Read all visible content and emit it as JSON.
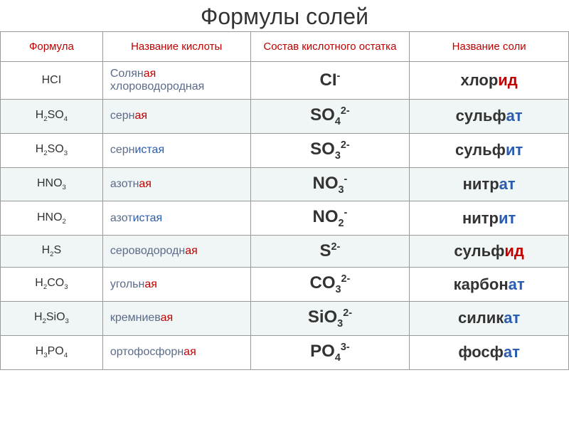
{
  "title": "Формулы солей",
  "headers": {
    "formula": "Формула",
    "acid_name": "Название кислоты",
    "residue": "Состав кислотного остатка",
    "salt_name": "Название соли"
  },
  "rows": [
    {
      "formula_parts": [
        {
          "t": "HCI"
        }
      ],
      "acid_lines": [
        {
          "stem": "Солян",
          "suffix": "ая",
          "suffix_color": "red"
        },
        {
          "stem": "хлороводородная",
          "suffix": "",
          "suffix_color": ""
        }
      ],
      "residue_parts": [
        {
          "t": "CI"
        },
        {
          "t": "-",
          "sup": true
        }
      ],
      "salt_stem": "хлор",
      "salt_suffix": "ид",
      "salt_suffix_color": "red"
    },
    {
      "formula_parts": [
        {
          "t": "H"
        },
        {
          "t": "2",
          "sub": true
        },
        {
          "t": "SO"
        },
        {
          "t": "4",
          "sub": true
        }
      ],
      "acid_lines": [
        {
          "stem": "серн",
          "suffix": "ая",
          "suffix_color": "red"
        }
      ],
      "residue_parts": [
        {
          "t": "SO"
        },
        {
          "t": "4",
          "sub": true
        },
        {
          "t": "2-",
          "sup": true
        }
      ],
      "salt_stem": "сульф",
      "salt_suffix": "ат",
      "salt_suffix_color": "blue"
    },
    {
      "formula_parts": [
        {
          "t": "H"
        },
        {
          "t": "2",
          "sub": true
        },
        {
          "t": "SO"
        },
        {
          "t": "3",
          "sub": true
        }
      ],
      "acid_lines": [
        {
          "stem": "серн",
          "suffix": "истая",
          "suffix_color": "blue"
        }
      ],
      "residue_parts": [
        {
          "t": "SO"
        },
        {
          "t": "3",
          "sub": true
        },
        {
          "t": "2-",
          "sup": true
        }
      ],
      "salt_stem": "сульф",
      "salt_suffix": "ит",
      "salt_suffix_color": "blue"
    },
    {
      "formula_parts": [
        {
          "t": "HNO"
        },
        {
          "t": "3",
          "sub": true
        }
      ],
      "acid_lines": [
        {
          "stem": "азотн",
          "suffix": "ая",
          "suffix_color": "red"
        }
      ],
      "residue_parts": [
        {
          "t": "NO"
        },
        {
          "t": "3",
          "sub": true
        },
        {
          "t": "-",
          "sup": true
        }
      ],
      "salt_stem": "нитр",
      "salt_suffix": "ат",
      "salt_suffix_color": "blue"
    },
    {
      "formula_parts": [
        {
          "t": "HNO"
        },
        {
          "t": "2",
          "sub": true
        }
      ],
      "acid_lines": [
        {
          "stem": "азот",
          "suffix": "истая",
          "suffix_color": "blue"
        }
      ],
      "residue_parts": [
        {
          "t": "NO"
        },
        {
          "t": "2",
          "sub": true
        },
        {
          "t": "-",
          "sup": true
        }
      ],
      "salt_stem": "нитр",
      "salt_suffix": "ит",
      "salt_suffix_color": "blue"
    },
    {
      "formula_parts": [
        {
          "t": "H"
        },
        {
          "t": "2",
          "sub": true
        },
        {
          "t": "S"
        }
      ],
      "acid_lines": [
        {
          "stem": "сероводородн",
          "suffix": "ая",
          "suffix_color": "red"
        }
      ],
      "residue_parts": [
        {
          "t": "S"
        },
        {
          "t": "2-",
          "sup": true
        }
      ],
      "salt_stem": "сульф",
      "salt_suffix": "ид",
      "salt_suffix_color": "red"
    },
    {
      "formula_parts": [
        {
          "t": "H"
        },
        {
          "t": "2",
          "sub": true
        },
        {
          "t": "CO"
        },
        {
          "t": "3",
          "sub": true
        }
      ],
      "acid_lines": [
        {
          "stem": "угольн",
          "suffix": "ая",
          "suffix_color": "red"
        }
      ],
      "residue_parts": [
        {
          "t": "CO"
        },
        {
          "t": "3",
          "sub": true
        },
        {
          "t": "2-",
          "sup": true
        }
      ],
      "salt_stem": "карбон",
      "salt_suffix": "ат",
      "salt_suffix_color": "blue"
    },
    {
      "formula_parts": [
        {
          "t": "H"
        },
        {
          "t": "2",
          "sub": true
        },
        {
          "t": "SiO"
        },
        {
          "t": "3",
          "sub": true
        }
      ],
      "acid_lines": [
        {
          "stem": "кремниев",
          "suffix": "ая",
          "suffix_color": "red"
        }
      ],
      "residue_parts": [
        {
          "t": "SiO"
        },
        {
          "t": "3",
          "sub": true
        },
        {
          "t": "2-",
          "sup": true
        }
      ],
      "salt_stem": "силик",
      "salt_suffix": "ат",
      "salt_suffix_color": "blue"
    },
    {
      "formula_parts": [
        {
          "t": "H"
        },
        {
          "t": "3",
          "sub": true
        },
        {
          "t": "PO"
        },
        {
          "t": "4",
          "sub": true
        }
      ],
      "acid_lines": [
        {
          "stem": "ортофосфорн",
          "suffix": "ая",
          "suffix_color": "red"
        }
      ],
      "residue_parts": [
        {
          "t": "PO"
        },
        {
          "t": "4",
          "sub": true
        },
        {
          "t": "3-",
          "sup": true
        }
      ],
      "salt_stem": "фосф",
      "salt_suffix": "ат",
      "salt_suffix_color": "blue"
    }
  ]
}
